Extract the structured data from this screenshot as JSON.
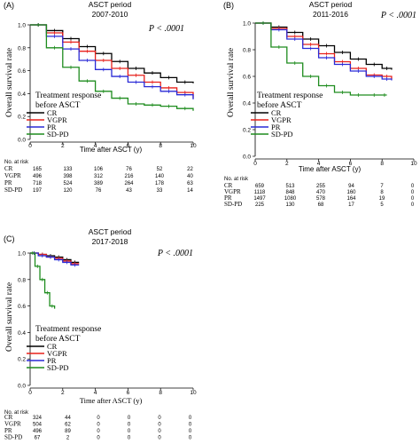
{
  "panels": [
    {
      "tag": "(A)",
      "title_lines": [
        "ASCT period",
        "2007-2010"
      ],
      "pvalue": "P < .0001",
      "ylabel": "Overall survival rate",
      "xlabel": "Time after ASCT (y)",
      "legend_title_lines": [
        "Treatment  response",
        "before ASCT"
      ],
      "legend": [
        "CR",
        "VGPR",
        "PR",
        "SD-PD"
      ],
      "risk_title": "No. at risk",
      "risk_rows": [
        {
          "label": "CR",
          "values": [
            "165",
            "133",
            "106",
            "76",
            "52",
            "22"
          ]
        },
        {
          "label": "VGPR",
          "values": [
            "496",
            "398",
            "312",
            "216",
            "140",
            "40"
          ]
        },
        {
          "label": "PR",
          "values": [
            "718",
            "524",
            "389",
            "264",
            "178",
            "63"
          ]
        },
        {
          "label": "SD-PD",
          "values": [
            "197",
            "120",
            "76",
            "43",
            "33",
            "14"
          ]
        }
      ]
    },
    {
      "tag": "(B)",
      "title_lines": [
        "ASCT period",
        "2011-2016"
      ],
      "pvalue": "P < .0001",
      "ylabel": "Overall survival rate",
      "xlabel": "Time after ASCT (y)",
      "legend_title_lines": [
        "Treatment  response",
        "before ASCT"
      ],
      "legend": [
        "CR",
        "VGPR",
        "PR",
        "SD-PD"
      ],
      "risk_title": "No. at risk",
      "risk_rows": [
        {
          "label": "CR",
          "values": [
            "659",
            "513",
            "255",
            "94",
            "7",
            "0"
          ]
        },
        {
          "label": "VGPR",
          "values": [
            "1118",
            "848",
            "470",
            "160",
            "8",
            "0"
          ]
        },
        {
          "label": "PR",
          "values": [
            "1497",
            "1080",
            "578",
            "164",
            "19",
            "0"
          ]
        },
        {
          "label": "SD-PD",
          "values": [
            "225",
            "130",
            "68",
            "17",
            "5",
            "0"
          ]
        }
      ]
    },
    {
      "tag": "(C)",
      "title_lines": [
        "ASCT period",
        "2017-2018"
      ],
      "pvalue": "P < .0001",
      "ylabel": "Overall survival rate",
      "xlabel": "Time after ASCT (y)",
      "legend_title_lines": [
        "Treatment  response",
        "before ASCT"
      ],
      "legend": [
        "CR",
        "VGPR",
        "PR",
        "SD-PD"
      ],
      "risk_title": "No. at risk",
      "risk_rows": [
        {
          "label": "CR",
          "values": [
            "324",
            "44",
            "0",
            "0",
            "0",
            "0"
          ]
        },
        {
          "label": "VGPR",
          "values": [
            "504",
            "62",
            "0",
            "0",
            "0",
            "0"
          ]
        },
        {
          "label": "PR",
          "values": [
            "496",
            "89",
            "0",
            "0",
            "0",
            "0"
          ]
        },
        {
          "label": "SD-PD",
          "values": [
            "67",
            "2",
            "0",
            "0",
            "0",
            "0"
          ]
        }
      ]
    }
  ],
  "series_colors": {
    "CR": "#000000",
    "VGPR": "#e8201b",
    "PR": "#2a2ad6",
    "SD-PD": "#1e8c1e"
  },
  "chart_data": [
    {
      "type": "line",
      "title": "ASCT period 2007-2010",
      "xlabel": "Time after ASCT (y)",
      "ylabel": "Overall survival rate",
      "xlim": [
        0,
        10
      ],
      "ylim": [
        0,
        1
      ],
      "xticks": [
        0,
        2,
        4,
        6,
        8,
        10
      ],
      "yticks": [
        0,
        0.2,
        0.4,
        0.6,
        0.8,
        1.0
      ],
      "series": [
        {
          "name": "CR",
          "x": [
            0,
            1,
            2,
            3,
            4,
            5,
            6,
            7,
            8,
            9,
            10
          ],
          "y": [
            1.0,
            0.95,
            0.88,
            0.81,
            0.75,
            0.68,
            0.62,
            0.58,
            0.54,
            0.5,
            0.49
          ]
        },
        {
          "name": "VGPR",
          "x": [
            0,
            1,
            2,
            3,
            4,
            5,
            6,
            7,
            8,
            9,
            10
          ],
          "y": [
            1.0,
            0.93,
            0.85,
            0.77,
            0.69,
            0.62,
            0.56,
            0.5,
            0.45,
            0.41,
            0.36
          ]
        },
        {
          "name": "PR",
          "x": [
            0,
            1,
            2,
            3,
            4,
            5,
            6,
            7,
            8,
            9,
            10
          ],
          "y": [
            1.0,
            0.9,
            0.79,
            0.69,
            0.61,
            0.55,
            0.5,
            0.46,
            0.42,
            0.39,
            0.35
          ]
        },
        {
          "name": "SD-PD",
          "x": [
            0,
            1,
            2,
            3,
            4,
            5,
            6,
            7,
            8,
            9,
            10
          ],
          "y": [
            1.0,
            0.8,
            0.63,
            0.51,
            0.42,
            0.36,
            0.31,
            0.3,
            0.29,
            0.27,
            0.25
          ]
        }
      ]
    },
    {
      "type": "line",
      "title": "ASCT period 2011-2016",
      "xlabel": "Time after ASCT (y)",
      "ylabel": "Overall survival rate",
      "xlim": [
        0,
        10
      ],
      "ylim": [
        0,
        1
      ],
      "xticks": [
        0,
        2,
        4,
        6,
        8,
        10
      ],
      "yticks": [
        0,
        0.2,
        0.4,
        0.6,
        0.8,
        1.0
      ],
      "series": [
        {
          "name": "CR",
          "x": [
            0,
            1,
            2,
            3,
            4,
            5,
            6,
            7,
            8,
            8.6
          ],
          "y": [
            1.0,
            0.97,
            0.93,
            0.88,
            0.83,
            0.78,
            0.73,
            0.69,
            0.66,
            0.65
          ]
        },
        {
          "name": "VGPR",
          "x": [
            0,
            1,
            2,
            3,
            4,
            5,
            6,
            7,
            8,
            8.6
          ],
          "y": [
            1.0,
            0.96,
            0.9,
            0.84,
            0.77,
            0.71,
            0.66,
            0.61,
            0.6,
            0.58
          ]
        },
        {
          "name": "PR",
          "x": [
            0,
            1,
            2,
            3,
            4,
            5,
            6,
            7,
            8,
            8.6
          ],
          "y": [
            1.0,
            0.95,
            0.88,
            0.81,
            0.74,
            0.69,
            0.64,
            0.6,
            0.58,
            0.57
          ]
        },
        {
          "name": "SD-PD",
          "x": [
            0,
            1,
            2,
            3,
            4,
            5,
            6,
            7,
            8,
            8.3
          ],
          "y": [
            1.0,
            0.82,
            0.7,
            0.6,
            0.53,
            0.48,
            0.46,
            0.46,
            0.46,
            0.46
          ]
        }
      ]
    },
    {
      "type": "line",
      "title": "ASCT period 2017-2018",
      "xlabel": "Time after ASCT (y)",
      "ylabel": "Overall survival rate",
      "xlim": [
        0,
        10
      ],
      "ylim": [
        0,
        1
      ],
      "xticks": [
        0,
        2,
        4,
        6,
        8,
        10
      ],
      "yticks": [
        0,
        0.2,
        0.4,
        0.6,
        0.8,
        1.0
      ],
      "series": [
        {
          "name": "CR",
          "x": [
            0,
            0.5,
            1,
            1.5,
            2,
            2.5,
            3
          ],
          "y": [
            1.0,
            0.99,
            0.98,
            0.97,
            0.95,
            0.93,
            0.93
          ]
        },
        {
          "name": "VGPR",
          "x": [
            0,
            0.5,
            1,
            1.5,
            2,
            2.5,
            3
          ],
          "y": [
            1.0,
            0.99,
            0.97,
            0.96,
            0.94,
            0.92,
            0.92
          ]
        },
        {
          "name": "PR",
          "x": [
            0,
            0.5,
            1,
            1.5,
            2,
            2.5,
            3
          ],
          "y": [
            1.0,
            0.98,
            0.97,
            0.95,
            0.93,
            0.91,
            0.91
          ]
        },
        {
          "name": "SD-PD",
          "x": [
            0,
            0.3,
            0.6,
            0.9,
            1.2,
            1.5
          ],
          "y": [
            1.0,
            0.9,
            0.8,
            0.7,
            0.6,
            0.58
          ]
        }
      ]
    }
  ]
}
